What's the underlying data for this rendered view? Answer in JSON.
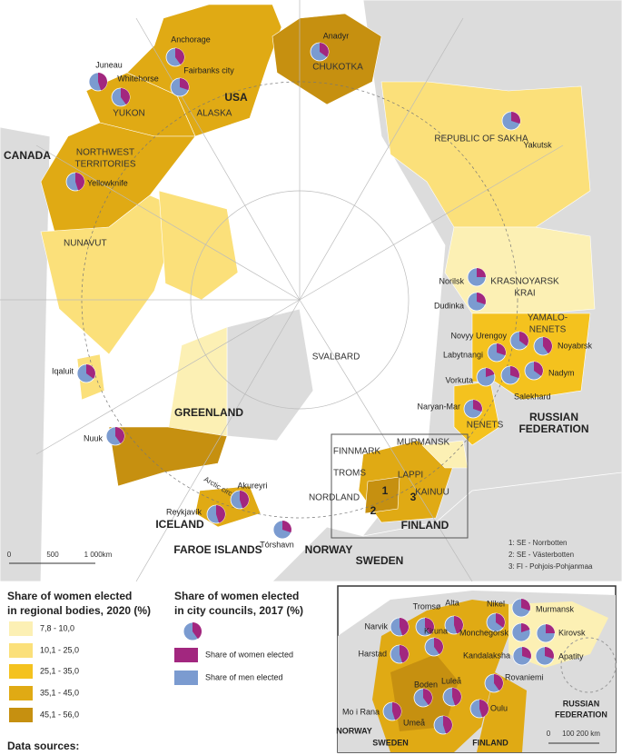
{
  "map": {
    "legend_regions": {
      "title_lines": [
        "Share of women elected",
        "in regional bodies, 2020 (%)"
      ],
      "classes": [
        {
          "label": "7,8 - 10,0",
          "color": "#fcf0b4"
        },
        {
          "label": "10,1 - 25,0",
          "color": "#fbe07a"
        },
        {
          "label": "25,1 - 35,0",
          "color": "#f4c21e"
        },
        {
          "label": "35,1 - 45,0",
          "color": "#e0aa14"
        },
        {
          "label": "45,1 - 56,0",
          "color": "#c69010"
        }
      ]
    },
    "legend_cities": {
      "title_lines": [
        "Share of women elected",
        "in city councils, 2017 (%)"
      ],
      "women": {
        "label": "Share of women elected",
        "color": "#a2277f"
      },
      "men": {
        "label": "Share of men elected",
        "color": "#7b9bd0"
      }
    },
    "regions": [
      [
        "CANADA"
      ],
      [
        "USA"
      ],
      [
        "ALASKA"
      ],
      [
        "YUKON"
      ],
      [
        "NORTHWEST",
        "TERRITORIES"
      ],
      [
        "NUNAVUT"
      ],
      [
        "CHUKOTKA"
      ],
      [
        "REPUBLIC OF SAKHA"
      ],
      [
        "KRASNOYARSK",
        "KRAI"
      ],
      [
        "YAMALO-",
        "NENETS"
      ],
      [
        "NENETS"
      ],
      [
        "RUSSIAN",
        "FEDERATION"
      ],
      [
        "GREENLAND"
      ],
      [
        "ICELAND"
      ],
      [
        "FAROE ISLANDS"
      ],
      [
        "NORWAY"
      ],
      [
        "SWEDEN"
      ],
      [
        "FINLAND"
      ],
      [
        "SVALBARD"
      ],
      [
        "FINNMARK"
      ],
      [
        "TROMS"
      ],
      [
        "NORDLAND"
      ],
      [
        "LAPPI"
      ],
      [
        "KAINUU"
      ],
      [
        "MURMANSK"
      ],
      [
        "1"
      ],
      [
        "2"
      ],
      [
        "3"
      ]
    ],
    "arctic_circle": "Arctic circle",
    "scale": [
      "0",
      "500",
      "1 000km"
    ],
    "notes": [
      "1: SE - Norrbotten",
      "2: SE - Västerbotten",
      "3: FI - Pohjois-Pohjanmaa"
    ],
    "cities": [
      {
        "name": "Anchorage",
        "women_share": 40
      },
      {
        "name": "Juneau",
        "women_share": 45
      },
      {
        "name": "Whitehorse",
        "women_share": 40
      },
      {
        "name": "Fairbanks city",
        "women_share": 30
      },
      {
        "name": "Anadyr",
        "women_share": 35
      },
      {
        "name": "Yakutsk",
        "women_share": 30
      },
      {
        "name": "Yellowknife",
        "women_share": 45
      },
      {
        "name": "Norilsk",
        "women_share": 25
      },
      {
        "name": "Dudinka",
        "women_share": 30
      },
      {
        "name": "Novyy Urengoy",
        "women_share": 35
      },
      {
        "name": "Noyabrsk",
        "women_share": 40
      },
      {
        "name": "Labytnangi",
        "women_share": 30
      },
      {
        "name": "Nadym",
        "women_share": 35
      },
      {
        "name": "Vorkuta",
        "women_share": 20
      },
      {
        "name": "Salekhard",
        "women_share": 30
      },
      {
        "name": "Naryan-Mar",
        "women_share": 30
      },
      {
        "name": "Iqaluit",
        "women_share": 35
      },
      {
        "name": "Nuuk",
        "women_share": 40
      },
      {
        "name": "Akureyri",
        "women_share": 45
      },
      {
        "name": "Reykjavík",
        "women_share": 45
      },
      {
        "name": "Tórshavn",
        "women_share": 30
      }
    ],
    "inset": {
      "regions": [
        [
          "NORWAY"
        ],
        [
          "SWEDEN"
        ],
        [
          "FINLAND"
        ],
        [
          "RUSSIAN",
          "FEDERATION"
        ]
      ],
      "scale": [
        "0",
        "100 200 km"
      ],
      "cities": [
        {
          "name": "Alta",
          "women_share": 45
        },
        {
          "name": "Narvik",
          "women_share": 45
        },
        {
          "name": "Tromsø",
          "women_share": 40
        },
        {
          "name": "Nikel",
          "women_share": 35
        },
        {
          "name": "Murmansk",
          "women_share": 30
        },
        {
          "name": "Monchegorsk",
          "women_share": 20
        },
        {
          "name": "Kirovsk",
          "women_share": 25
        },
        {
          "name": "Harstad",
          "women_share": 45
        },
        {
          "name": "Kiruna",
          "women_share": 40
        },
        {
          "name": "Kandalaksha",
          "women_share": 30
        },
        {
          "name": "Apatity",
          "women_share": 30
        },
        {
          "name": "Rovaniemi",
          "women_share": 40
        },
        {
          "name": "Mo i Rana",
          "women_share": 45
        },
        {
          "name": "Boden",
          "women_share": 40
        },
        {
          "name": "Luleå",
          "women_share": 45
        },
        {
          "name": "Oulu",
          "women_share": 45
        },
        {
          "name": "Umeå",
          "women_share": 45
        }
      ]
    },
    "data_sources": "Data sources:"
  }
}
